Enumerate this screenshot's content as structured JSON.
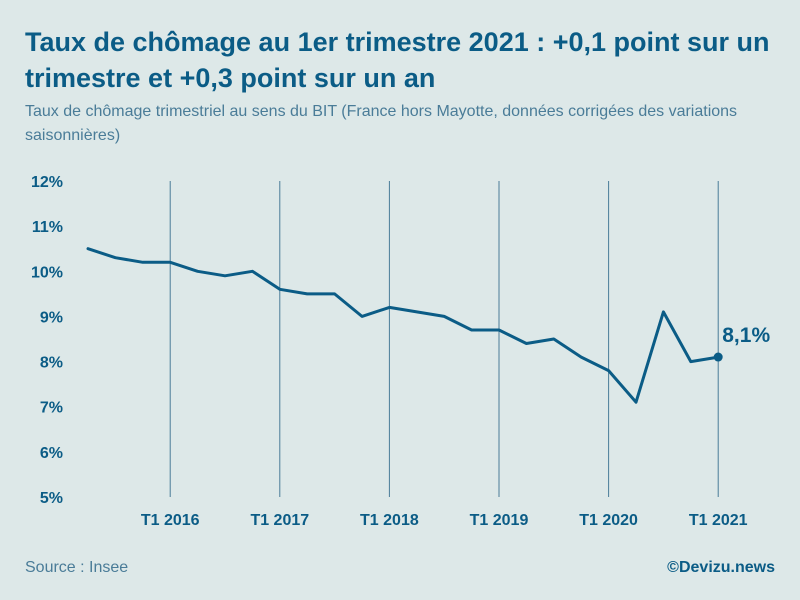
{
  "title": "Taux de chômage au 1er trimestre 2021 : +0,1 point sur un trimestre et +0,3 point sur un an",
  "subtitle": "Taux de chômage trimestriel au sens du BIT (France hors Mayotte, données corrigées des variations saisonnières)",
  "source": "Source : Insee",
  "brand": "©Devizu.news",
  "colors": {
    "background": "#dde8e8",
    "line": "#0b5c86",
    "text": "#0b5c86",
    "muted": "#4a7c98"
  },
  "chart_data": {
    "type": "line",
    "title": "",
    "xlabel": "",
    "ylabel": "",
    "x": [
      "T2 2015",
      "T3 2015",
      "T4 2015",
      "T1 2016",
      "T2 2016",
      "T3 2016",
      "T4 2016",
      "T1 2017",
      "T2 2017",
      "T3 2017",
      "T4 2017",
      "T1 2018",
      "T2 2018",
      "T3 2018",
      "T4 2018",
      "T1 2019",
      "T2 2019",
      "T3 2019",
      "T4 2019",
      "T1 2020",
      "T2 2020",
      "T3 2020",
      "T4 2020",
      "T1 2021"
    ],
    "series": [
      {
        "values": [
          10.5,
          10.3,
          10.2,
          10.2,
          10.0,
          9.9,
          10.0,
          9.6,
          9.5,
          9.5,
          9.0,
          9.2,
          9.1,
          9.0,
          8.7,
          8.7,
          8.4,
          8.5,
          8.1,
          7.8,
          7.1,
          9.1,
          8.0,
          8.1
        ]
      }
    ],
    "ylim": [
      5,
      12
    ],
    "y_ticks": [
      "5%",
      "6%",
      "7%",
      "8%",
      "9%",
      "10%",
      "11%",
      "12%"
    ],
    "x_tick_labels": [
      "T1 2016",
      "T1 2017",
      "T1 2018",
      "T1 2019",
      "T1 2020",
      "T1 2021"
    ],
    "gridlines": "vertical",
    "last_point_label": "8,1%"
  }
}
